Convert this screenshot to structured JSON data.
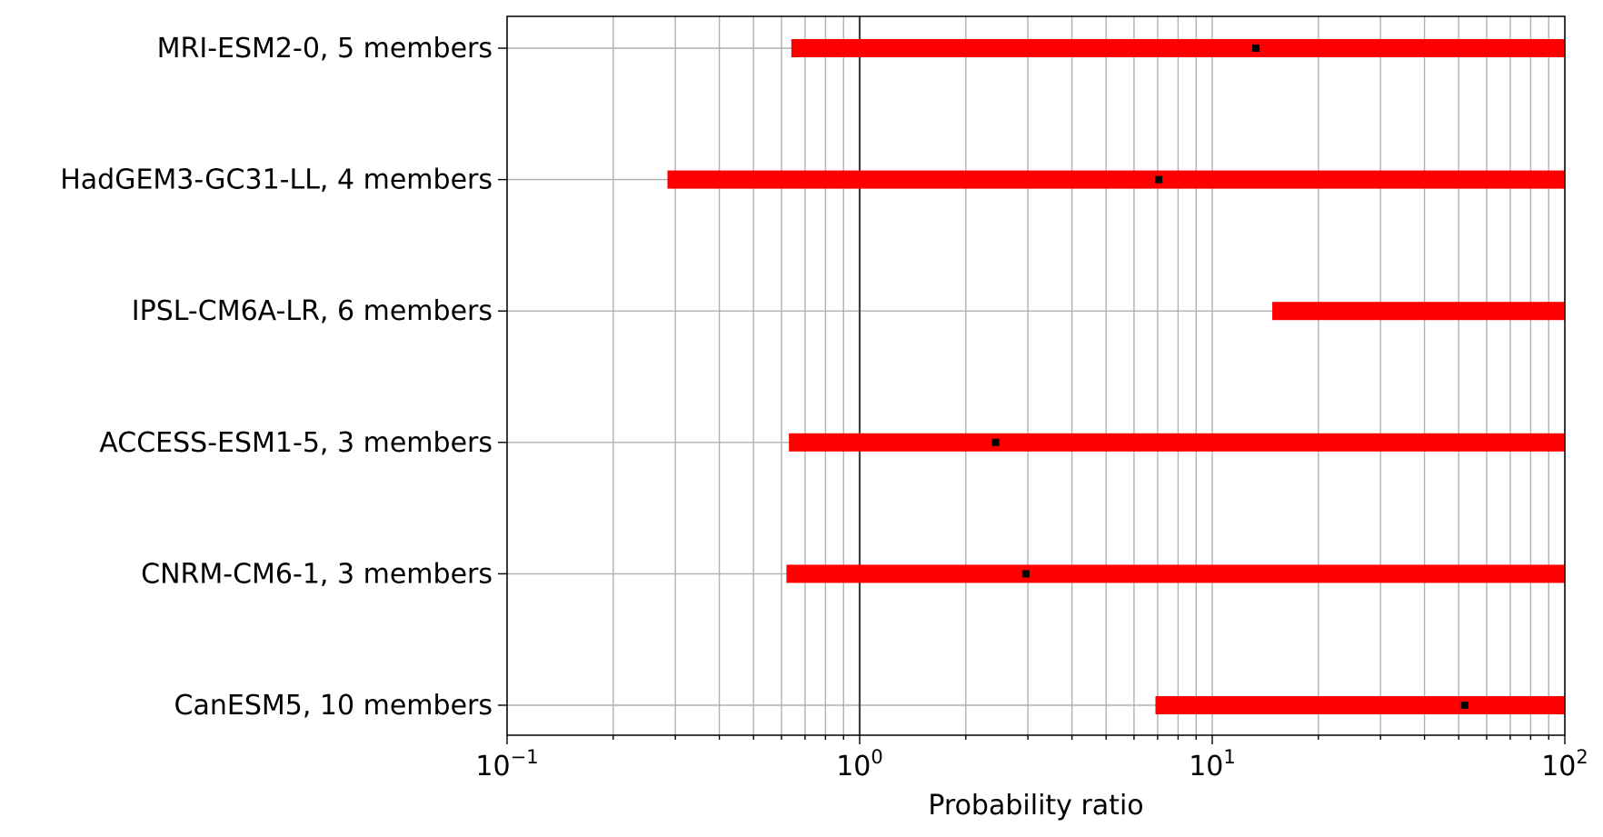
{
  "chart_data": {
    "type": "bar",
    "orientation": "horizontal-range",
    "xlabel": "Probability ratio",
    "xscale": "log",
    "xlim": [
      0.1,
      100
    ],
    "x_ticks": [
      {
        "base": "10",
        "exp": "−1"
      },
      {
        "base": "10",
        "exp": "0"
      },
      {
        "base": "10",
        "exp": "1"
      },
      {
        "base": "10",
        "exp": "2"
      }
    ],
    "reference_line": 1,
    "grid": true,
    "bar_color": "#ff0000",
    "marker_color": "#000000",
    "series": [
      {
        "label": "MRI-ESM2-0, 5 members",
        "low": 0.64,
        "high": 100,
        "best": 13.3
      },
      {
        "label": "HadGEM3-GC31-LL, 4 members",
        "low": 0.285,
        "high": 100,
        "best": 7.05
      },
      {
        "label": "IPSL-CM6A-LR, 6 members",
        "low": 14.8,
        "high": 100,
        "best": null
      },
      {
        "label": "ACCESS-ESM1-5, 3 members",
        "low": 0.63,
        "high": 100,
        "best": 2.43
      },
      {
        "label": "CNRM-CM6-1, 3 members",
        "low": 0.62,
        "high": 100,
        "best": 2.96
      },
      {
        "label": "CanESM5, 10 members",
        "low": 6.9,
        "high": 100,
        "best": 52
      }
    ]
  }
}
